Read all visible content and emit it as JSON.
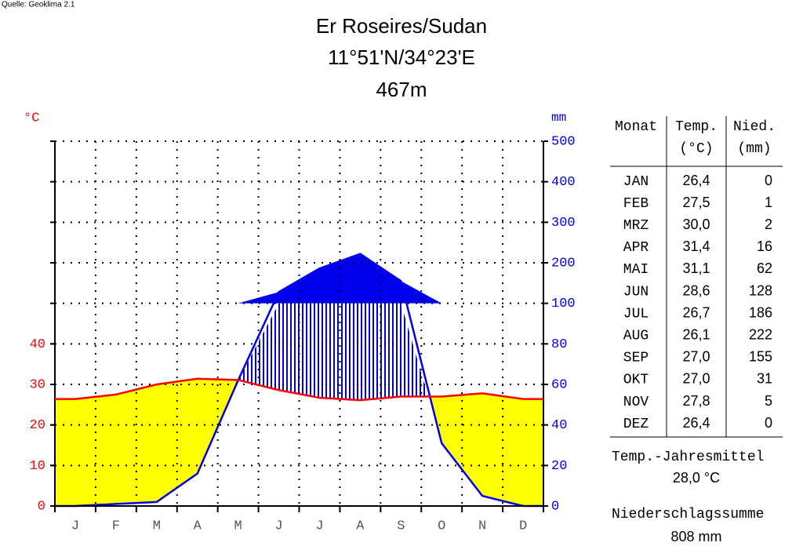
{
  "source": "Quelle: Geoklima 2.1",
  "chart_data": {
    "type": "climate",
    "title": "Er Roseires/Sudan",
    "subtitle": "11°51'N/34°23'E",
    "elevation": "467m",
    "ylabel": "°C",
    "y2label": "mm",
    "categories": [
      "J",
      "F",
      "M",
      "A",
      "M",
      "J",
      "J",
      "A",
      "S",
      "O",
      "N",
      "D"
    ],
    "series": [
      {
        "name": "Temp.",
        "color": "#ff0000",
        "values": [
          26.4,
          27.5,
          30.0,
          31.4,
          31.1,
          28.6,
          26.7,
          26.1,
          27.0,
          27.0,
          27.8,
          26.4
        ],
        "value_labels": [
          "26,4",
          "27,5",
          "30,0",
          "31,4",
          "31,1",
          "28,6",
          "26,7",
          "26,1",
          "27,0",
          "27,0",
          "27,8",
          "26,4"
        ]
      },
      {
        "name": "Nied.",
        "color": "#0000ee",
        "axis": "y2",
        "values": [
          0,
          1,
          2,
          16,
          62,
          128,
          186,
          222,
          155,
          31,
          5,
          0
        ]
      }
    ],
    "ylim": [
      0,
      90
    ],
    "yticks": [
      0,
      10,
      20,
      30,
      40
    ],
    "y2lim": [
      0,
      500
    ],
    "y2ticks": [
      0,
      20,
      40,
      60,
      80,
      100,
      200,
      300,
      400,
      500
    ],
    "arid_color": "#ffff00",
    "grid": true
  },
  "table": {
    "header": "Monat",
    "units": [
      "(°C)",
      "(mm)"
    ],
    "months": [
      "JAN",
      "FEB",
      "MRZ",
      "APR",
      "MAI",
      "JUN",
      "JUL",
      "AUG",
      "SEP",
      "OKT",
      "NOV",
      "DEZ"
    ]
  },
  "summary": {
    "mean_label": "Temp.-Jahresmittel",
    "mean": "28,0 °C",
    "total_label": "Niederschlagssumme",
    "total": "808 mm"
  }
}
